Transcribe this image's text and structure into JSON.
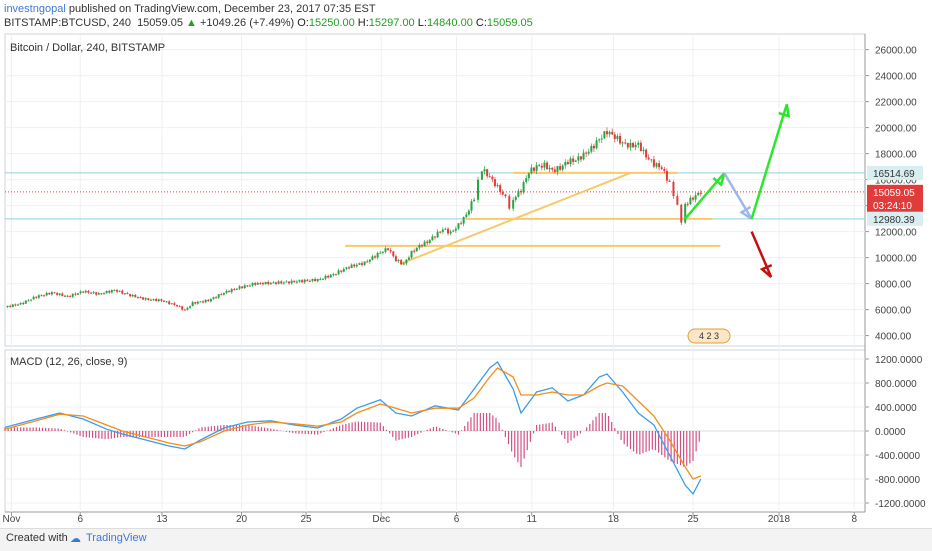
{
  "header": {
    "author": "investngopal",
    "published": "published on TradingView.com, December 23, 2017 07:35 EST",
    "symbol": "BITSTAMP:BTCUSD, 240",
    "last": "15059.05",
    "change": "+1049.26 (+7.49%)",
    "o_label": "O:",
    "o": "15250.00",
    "h_label": "H:",
    "h": "15297.00",
    "l_label": "L:",
    "l": "14840.00",
    "c_label": "C:",
    "c": "15059.05"
  },
  "footer": {
    "created_with": "Created with",
    "brand": "TradingView"
  },
  "colors": {
    "up": "#26a641",
    "down": "#e03c3c",
    "macd": "#3d9be9",
    "signal": "#f28e1c",
    "hist": "#c2185b",
    "support": "#8ed3d8",
    "trend": "#f7c96b",
    "arrow_up": "#2ee62e",
    "arrow_gray": "#9db7e8",
    "arrow_down": "#c41010"
  },
  "chart_data": [
    {
      "type": "candlestick",
      "title": "Bitcoin / Dollar, 240, BITSTAMP",
      "x_labels": [
        "Nov",
        "6",
        "13",
        "20",
        "25",
        "Dec",
        "6",
        "11",
        "18",
        "25",
        "2018",
        "8"
      ],
      "y_ticks": [
        "26000.00",
        "24000.00",
        "22000.00",
        "20000.00",
        "18000.00",
        "16000.00",
        "14000.00",
        "12000.00",
        "10000.00",
        "8000.00",
        "6000.00",
        "4000.00"
      ],
      "ylim": [
        3200,
        27200
      ],
      "price_labels": [
        {
          "value": 16514.69,
          "text": "16514.69",
          "kind": "level"
        },
        {
          "value": 15059.05,
          "text": "15059.05",
          "kind": "last"
        },
        {
          "value": 15059.05,
          "text": "03:24:10",
          "kind": "timer"
        },
        {
          "value": 12980.39,
          "text": "12980.39",
          "kind": "level"
        }
      ],
      "price_path": [
        [
          0,
          6200
        ],
        [
          4,
          6450
        ],
        [
          8,
          7000
        ],
        [
          12,
          7300
        ],
        [
          16,
          7000
        ],
        [
          20,
          7400
        ],
        [
          24,
          7200
        ],
        [
          28,
          7500
        ],
        [
          32,
          7100
        ],
        [
          36,
          6800
        ],
        [
          40,
          6700
        ],
        [
          44,
          6300
        ],
        [
          46,
          5950
        ],
        [
          48,
          6500
        ],
        [
          52,
          6700
        ],
        [
          56,
          7300
        ],
        [
          60,
          7700
        ],
        [
          64,
          8000
        ],
        [
          68,
          8050
        ],
        [
          72,
          8100
        ],
        [
          76,
          8200
        ],
        [
          80,
          8300
        ],
        [
          84,
          8700
        ],
        [
          88,
          9300
        ],
        [
          92,
          9600
        ],
        [
          96,
          10400
        ],
        [
          98,
          10700
        ],
        [
          100,
          9800
        ],
        [
          102,
          9500
        ],
        [
          104,
          10400
        ],
        [
          106,
          10900
        ],
        [
          108,
          11200
        ],
        [
          110,
          11700
        ],
        [
          112,
          12200
        ],
        [
          114,
          11900
        ],
        [
          116,
          12500
        ],
        [
          118,
          13300
        ],
        [
          120,
          14600
        ],
        [
          121,
          15800
        ],
        [
          122,
          16800
        ],
        [
          124,
          16200
        ],
        [
          126,
          15400
        ],
        [
          128,
          14600
        ],
        [
          129,
          13800
        ],
        [
          130,
          14500
        ],
        [
          132,
          15200
        ],
        [
          134,
          16600
        ],
        [
          136,
          17000
        ],
        [
          138,
          17100
        ],
        [
          140,
          16700
        ],
        [
          142,
          16900
        ],
        [
          144,
          17400
        ],
        [
          146,
          17500
        ],
        [
          148,
          17900
        ],
        [
          150,
          18400
        ],
        [
          152,
          19100
        ],
        [
          154,
          19700
        ],
        [
          156,
          19300
        ],
        [
          158,
          18800
        ],
        [
          160,
          18600
        ],
        [
          162,
          18700
        ],
        [
          164,
          17800
        ],
        [
          166,
          17200
        ],
        [
          168,
          16900
        ],
        [
          170,
          15700
        ],
        [
          171,
          14900
        ],
        [
          172,
          13900
        ],
        [
          173,
          12800
        ],
        [
          174,
          14100
        ],
        [
          176,
          14600
        ],
        [
          178,
          15059
        ]
      ],
      "annotations": {
        "horizontal_levels": [
          16514.69,
          12980.39
        ],
        "resistance_band": 16514.69,
        "support_band": 12980.39,
        "lower_support": 10900,
        "trend_line": {
          "from": [
            101,
            9500
          ],
          "to": [
            160,
            16514.69
          ]
        },
        "projection": {
          "green_up_1": {
            "from": [
              174,
              12980
            ],
            "to": [
              184,
              16500
            ]
          },
          "gray_down": {
            "from": [
              184,
              16500
            ],
            "to": [
              191,
              12980
            ]
          },
          "green_up_2": {
            "from": [
              191,
              12980
            ],
            "to": [
              200,
              21800
            ]
          },
          "red_down": {
            "from": [
              191,
              12000
            ],
            "to": [
              196,
              8500
            ]
          }
        }
      }
    },
    {
      "type": "line",
      "title": "MACD (12, 26, close, 9)",
      "y_ticks": [
        "1200.0000",
        "800.0000",
        "400.0000",
        "0.0000",
        "-400.0000",
        "-800.0000",
        "-1200.0000"
      ],
      "ylim": [
        -1350,
        1350
      ],
      "series": [
        {
          "name": "MACD",
          "points": [
            [
              0,
              60
            ],
            [
              8,
              200
            ],
            [
              14,
              300
            ],
            [
              20,
              200
            ],
            [
              26,
              30
            ],
            [
              30,
              -50
            ],
            [
              36,
              -150
            ],
            [
              42,
              -250
            ],
            [
              46,
              -300
            ],
            [
              50,
              -150
            ],
            [
              56,
              50
            ],
            [
              62,
              150
            ],
            [
              68,
              170
            ],
            [
              74,
              100
            ],
            [
              80,
              50
            ],
            [
              86,
              200
            ],
            [
              90,
              380
            ],
            [
              96,
              520
            ],
            [
              100,
              300
            ],
            [
              104,
              250
            ],
            [
              110,
              420
            ],
            [
              116,
              350
            ],
            [
              120,
              700
            ],
            [
              124,
              1050
            ],
            [
              126,
              1150
            ],
            [
              130,
              700
            ],
            [
              132,
              300
            ],
            [
              136,
              650
            ],
            [
              140,
              720
            ],
            [
              144,
              500
            ],
            [
              148,
              600
            ],
            [
              152,
              900
            ],
            [
              154,
              950
            ],
            [
              158,
              650
            ],
            [
              162,
              300
            ],
            [
              166,
              100
            ],
            [
              170,
              -400
            ],
            [
              174,
              -900
            ],
            [
              176,
              -1050
            ],
            [
              178,
              -800
            ]
          ]
        },
        {
          "name": "Signal",
          "points": [
            [
              0,
              30
            ],
            [
              8,
              170
            ],
            [
              14,
              280
            ],
            [
              20,
              250
            ],
            [
              26,
              100
            ],
            [
              30,
              0
            ],
            [
              36,
              -100
            ],
            [
              42,
              -200
            ],
            [
              46,
              -250
            ],
            [
              50,
              -180
            ],
            [
              56,
              0
            ],
            [
              62,
              100
            ],
            [
              68,
              150
            ],
            [
              74,
              120
            ],
            [
              80,
              80
            ],
            [
              86,
              150
            ],
            [
              90,
              300
            ],
            [
              96,
              450
            ],
            [
              100,
              380
            ],
            [
              104,
              300
            ],
            [
              110,
              380
            ],
            [
              116,
              380
            ],
            [
              120,
              550
            ],
            [
              124,
              900
            ],
            [
              126,
              1050
            ],
            [
              130,
              900
            ],
            [
              132,
              600
            ],
            [
              136,
              600
            ],
            [
              140,
              650
            ],
            [
              144,
              600
            ],
            [
              148,
              600
            ],
            [
              152,
              750
            ],
            [
              154,
              800
            ],
            [
              158,
              750
            ],
            [
              162,
              500
            ],
            [
              166,
              250
            ],
            [
              170,
              -150
            ],
            [
              174,
              -600
            ],
            [
              176,
              -800
            ],
            [
              178,
              -750
            ]
          ]
        }
      ]
    }
  ],
  "session_badge": "4 2 3"
}
